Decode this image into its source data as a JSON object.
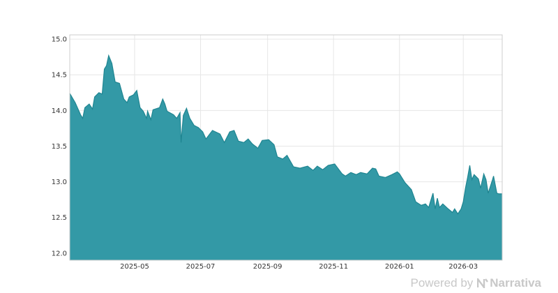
{
  "chart_data": {
    "type": "area",
    "title": "",
    "xlabel": "",
    "ylabel": "",
    "xlim": [
      "2025-03-02",
      "2026-04-06"
    ],
    "ylim": [
      11.9,
      15.06
    ],
    "grid": true,
    "legend": "none",
    "x_ticks": [
      "2025-05",
      "2025-07",
      "2025-09",
      "2025-11",
      "2026-01",
      "2026-03"
    ],
    "y_ticks": [
      "12.0",
      "12.5",
      "13.0",
      "13.5",
      "14.0",
      "14.5",
      "15.0"
    ],
    "colors": {
      "fill": "#3399a6",
      "line": "#1f8591",
      "grid": "#e6e6e6",
      "frame": "#cccccc"
    },
    "series": [
      {
        "x": [
          "2025-03-02",
          "2025-03-07",
          "2025-03-12",
          "2025-03-14",
          "2025-03-16",
          "2025-03-20",
          "2025-03-23",
          "2025-03-25",
          "2025-03-29",
          "2025-04-01",
          "2025-04-03",
          "2025-04-05",
          "2025-04-07",
          "2025-04-10",
          "2025-04-13",
          "2025-04-17",
          "2025-04-21",
          "2025-04-24",
          "2025-04-26",
          "2025-04-30",
          "2025-05-03",
          "2025-05-06",
          "2025-05-09",
          "2025-05-12",
          "2025-05-13",
          "2025-05-16",
          "2025-05-18",
          "2025-05-24",
          "2025-05-27",
          "2025-05-29",
          "2025-05-31",
          "2025-06-06",
          "2025-06-09",
          "2025-06-12",
          "2025-06-13",
          "2025-06-15",
          "2025-06-18",
          "2025-06-21",
          "2025-06-25",
          "2025-06-29",
          "2025-07-03",
          "2025-07-06",
          "2025-07-12",
          "2025-07-19",
          "2025-07-23",
          "2025-07-28",
          "2025-08-01",
          "2025-08-05",
          "2025-08-10",
          "2025-08-14",
          "2025-08-18",
          "2025-08-23",
          "2025-08-27",
          "2025-09-02",
          "2025-09-07",
          "2025-09-10",
          "2025-09-15",
          "2025-09-19",
          "2025-09-25",
          "2025-10-01",
          "2025-10-08",
          "2025-10-13",
          "2025-10-17",
          "2025-10-22",
          "2025-10-27",
          "2025-11-02",
          "2025-11-09",
          "2025-11-12",
          "2025-11-17",
          "2025-11-22",
          "2025-11-26",
          "2025-12-02",
          "2025-12-07",
          "2025-12-10",
          "2025-12-13",
          "2025-12-19",
          "2025-12-25",
          "2025-12-30",
          "2026-01-01",
          "2026-01-06",
          "2026-01-12",
          "2026-01-16",
          "2026-01-21",
          "2026-01-25",
          "2026-01-28",
          "2026-02-01",
          "2026-02-03",
          "2026-02-05",
          "2026-02-07",
          "2026-02-10",
          "2026-02-15",
          "2026-02-19",
          "2026-02-21",
          "2026-02-24",
          "2026-02-27",
          "2026-03-01",
          "2026-03-03",
          "2026-03-05",
          "2026-03-07",
          "2026-03-09",
          "2026-03-11",
          "2026-03-15",
          "2026-03-17",
          "2026-03-20",
          "2026-03-22",
          "2026-03-24",
          "2026-03-28",
          "2026-03-29",
          "2026-04-01",
          "2026-04-03",
          "2026-04-06"
        ],
        "y": [
          14.24,
          14.11,
          13.94,
          13.89,
          14.04,
          14.09,
          14.02,
          14.19,
          14.25,
          14.23,
          14.58,
          14.63,
          14.77,
          14.66,
          14.4,
          14.38,
          14.16,
          14.11,
          14.19,
          14.22,
          14.28,
          14.04,
          13.99,
          13.89,
          13.99,
          13.87,
          14.01,
          14.04,
          14.16,
          14.09,
          13.99,
          13.94,
          13.89,
          13.97,
          13.55,
          13.93,
          14.03,
          13.89,
          13.79,
          13.76,
          13.7,
          13.6,
          13.72,
          13.67,
          13.55,
          13.7,
          13.72,
          13.57,
          13.55,
          13.6,
          13.53,
          13.47,
          13.58,
          13.59,
          13.52,
          13.35,
          13.32,
          13.37,
          13.21,
          13.19,
          13.22,
          13.16,
          13.22,
          13.17,
          13.23,
          13.25,
          13.11,
          13.08,
          13.13,
          13.1,
          13.13,
          13.11,
          13.19,
          13.18,
          13.08,
          13.06,
          13.1,
          13.14,
          13.11,
          12.99,
          12.89,
          12.72,
          12.67,
          12.69,
          12.64,
          12.84,
          12.62,
          12.77,
          12.64,
          12.69,
          12.62,
          12.57,
          12.62,
          12.55,
          12.62,
          12.72,
          12.91,
          13.06,
          13.23,
          13.03,
          13.1,
          13.04,
          12.91,
          13.11,
          13.03,
          12.84,
          13.03,
          13.08,
          12.84,
          12.83,
          12.83
        ]
      }
    ]
  },
  "footer": {
    "powered_by": "Powered by",
    "brand": "Narrativa"
  }
}
